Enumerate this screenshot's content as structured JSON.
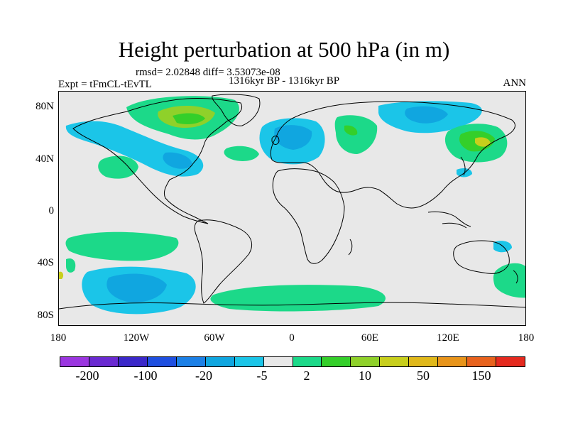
{
  "title": "Height perturbation at 500 hPa (in m)",
  "stats": "rmsd= 2.02848 diff= 3.53073e-08",
  "experiment": "Expt = tFmCL-tEvTL",
  "period": "1316kyr BP - 1316kyr BP",
  "season": "ANN",
  "axes": {
    "lat_ticks": [
      "80N",
      "40N",
      "0",
      "40S",
      "80S"
    ],
    "lon_ticks": [
      "180",
      "120W",
      "60W",
      "0",
      "60E",
      "120E",
      "180"
    ]
  },
  "colorbar": {
    "colors": [
      "#9b36e0",
      "#6a2ad1",
      "#3b28c9",
      "#1f4fe0",
      "#1c80e6",
      "#10a6e0",
      "#1bc5e8",
      "#e8e8e8",
      "#1cd989",
      "#34cf2a",
      "#8fd12a",
      "#c8cf1c",
      "#e0b81a",
      "#e8941a",
      "#e8621d",
      "#e52a1f"
    ],
    "labels": [
      "-200",
      "-100",
      "-20",
      "-5",
      "2",
      "10",
      "50",
      "150"
    ]
  },
  "palette": {
    "background": "#e8e8e8",
    "coast": "#000000"
  }
}
